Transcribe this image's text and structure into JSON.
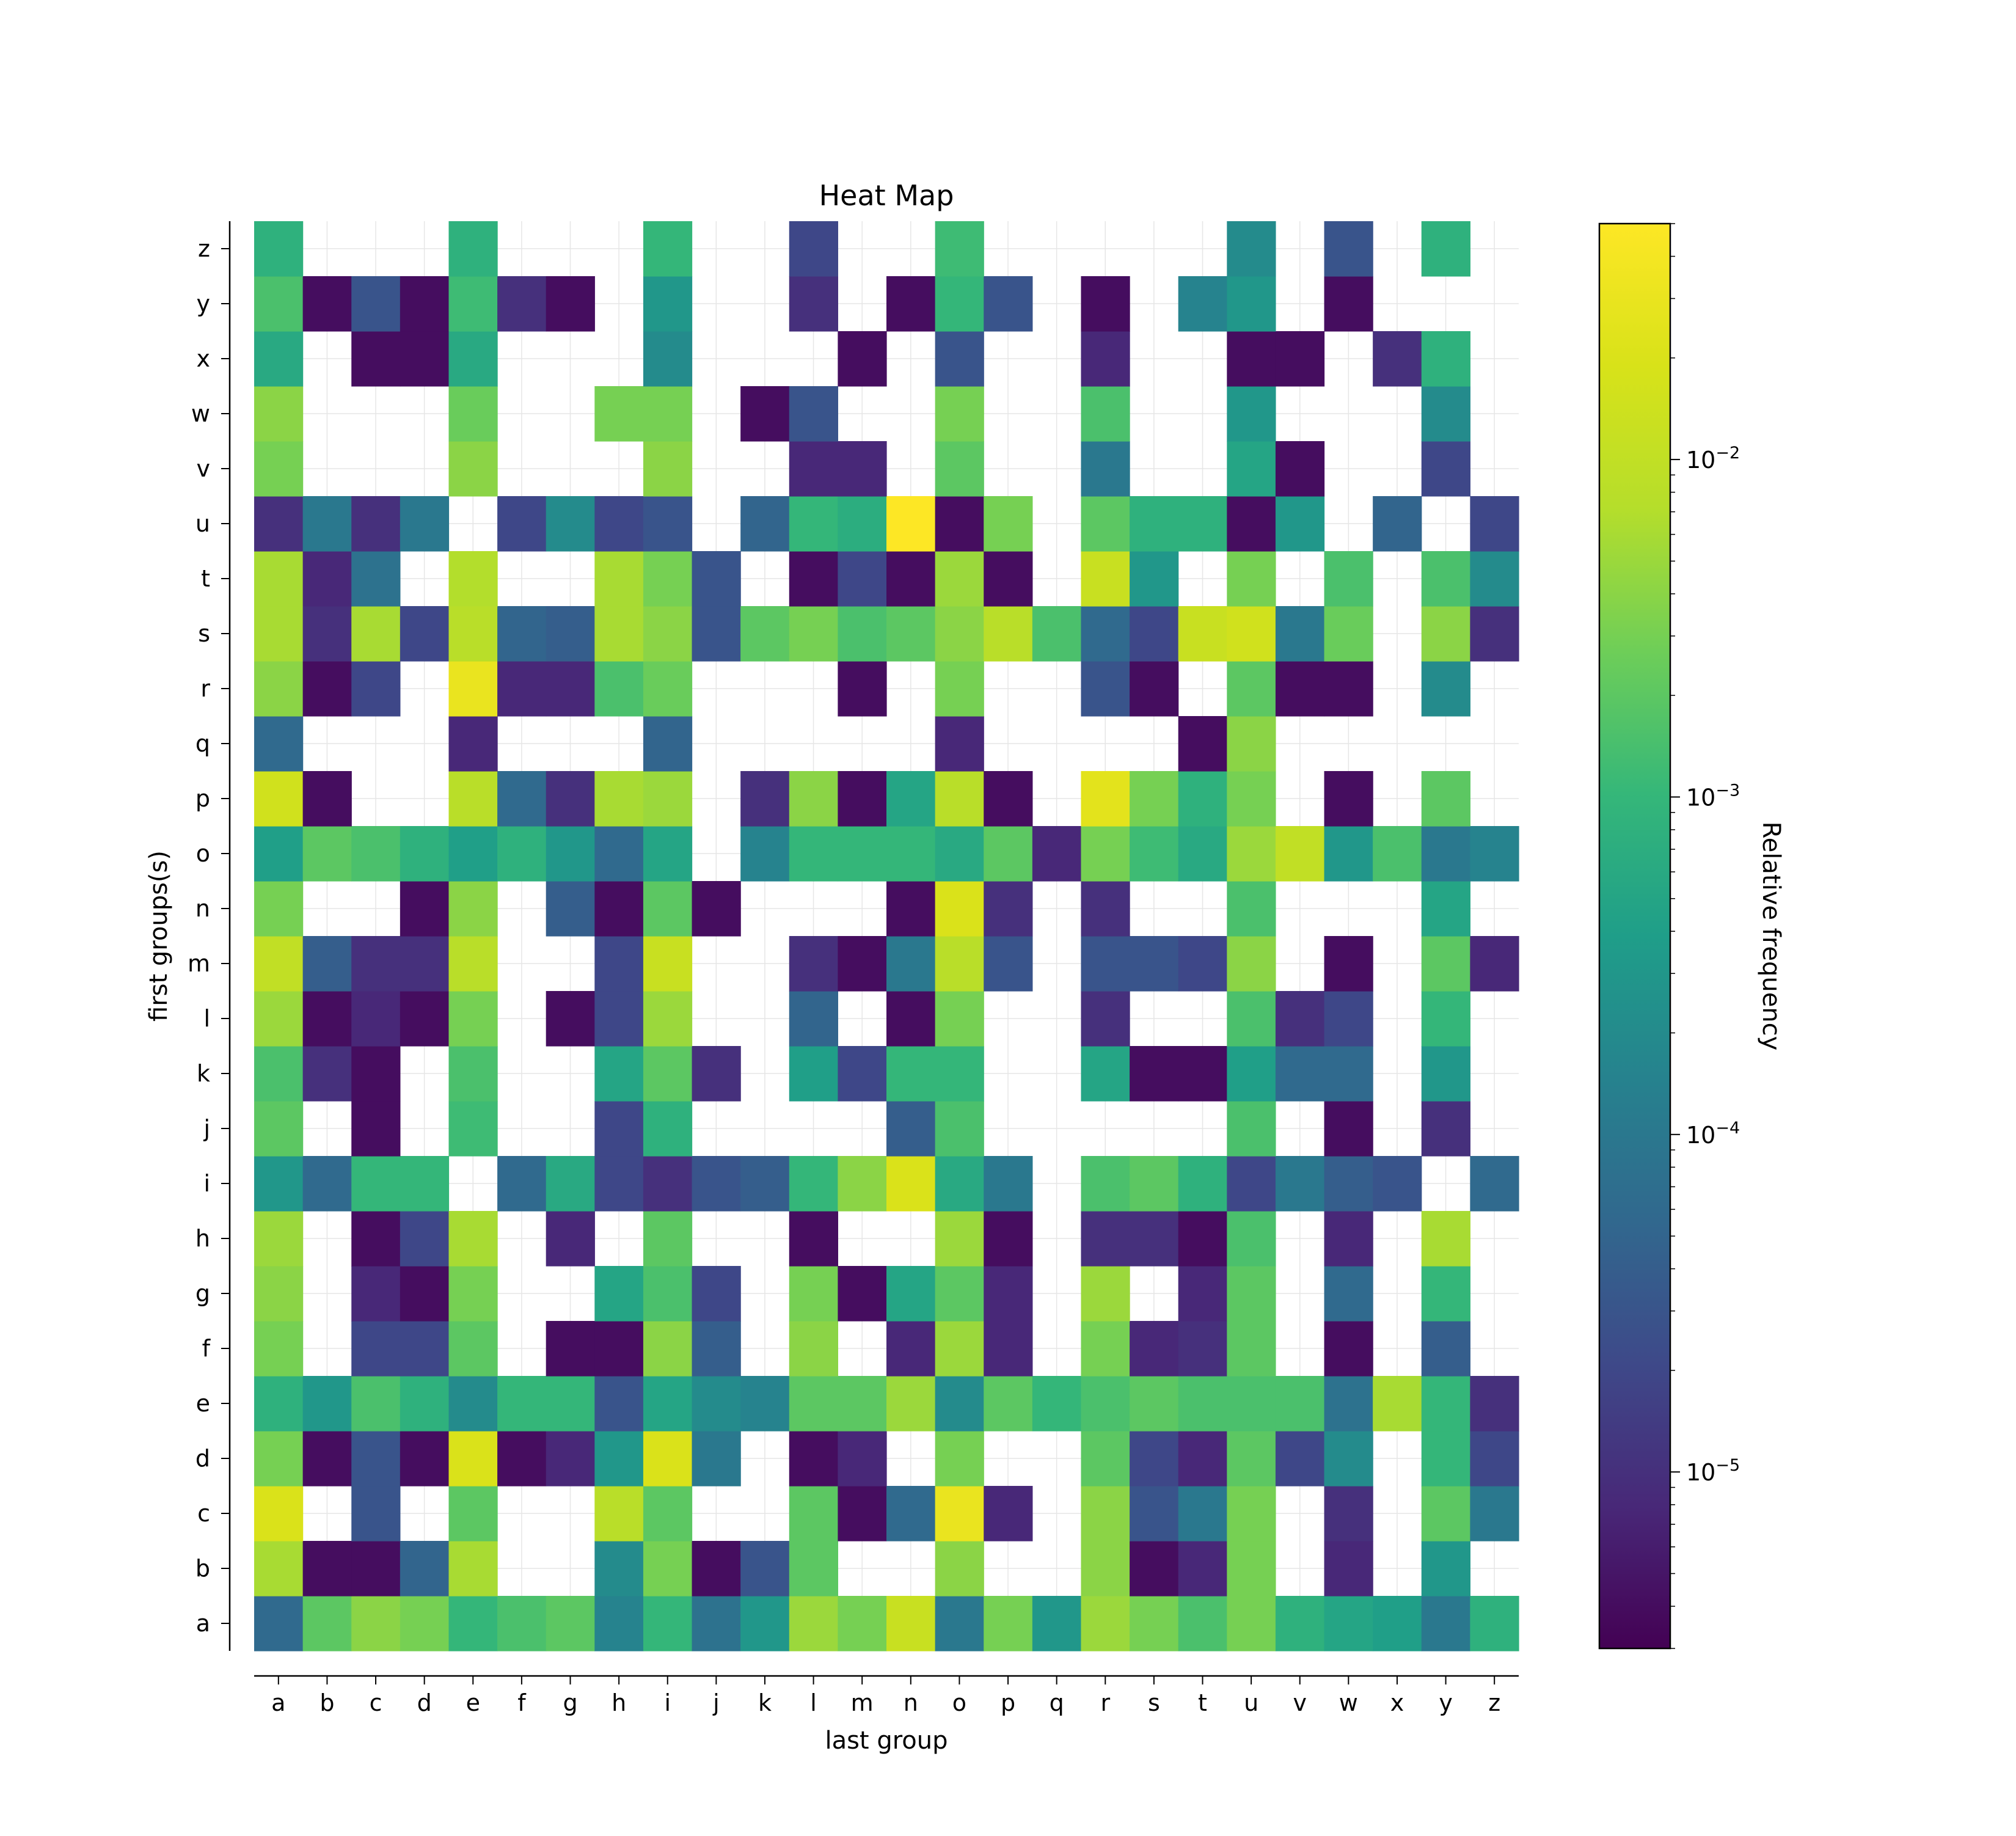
{
  "chart_data": {
    "type": "heatmap",
    "title": "Heat Map",
    "xlabel": "last group",
    "ylabel": "first groups(s)",
    "colorbar_label": "Relative frequency",
    "colorbar_scale": "log",
    "colorbar_range": [
      3e-06,
      0.05
    ],
    "colorbar_ticks": [
      {
        "value": 1e-05,
        "mantissa": "10",
        "exponent": "−5"
      },
      {
        "value": 0.0001,
        "mantissa": "10",
        "exponent": "−4"
      },
      {
        "value": 0.001,
        "mantissa": "10",
        "exponent": "−3"
      },
      {
        "value": 0.01,
        "mantissa": "10",
        "exponent": "−2"
      }
    ],
    "colormap": "viridis",
    "grid": true,
    "x_categories": [
      "a",
      "b",
      "c",
      "d",
      "e",
      "f",
      "g",
      "h",
      "i",
      "j",
      "k",
      "l",
      "m",
      "n",
      "o",
      "p",
      "q",
      "r",
      "s",
      "t",
      "u",
      "v",
      "w",
      "x",
      "y",
      "z"
    ],
    "y_categories": [
      "a",
      "b",
      "c",
      "d",
      "e",
      "f",
      "g",
      "h",
      "i",
      "j",
      "k",
      "l",
      "m",
      "n",
      "o",
      "p",
      "q",
      "r",
      "s",
      "t",
      "u",
      "v",
      "w",
      "x",
      "y",
      "z"
    ],
    "values": [
      [
        6e-05,
        0.002,
        0.004,
        0.003,
        0.001,
        0.0015,
        0.002,
        0.00015,
        0.001,
        8e-05,
        0.0003,
        0.005,
        0.003,
        0.012,
        0.0001,
        0.003,
        0.0003,
        0.005,
        0.003,
        0.0015,
        0.003,
        0.0008,
        0.0005,
        0.0004,
        0.0001,
        0.0008
      ],
      [
        0.006,
        4e-06,
        4e-06,
        5e-05,
        0.006,
        null,
        null,
        0.0002,
        0.003,
        4e-06,
        3e-05,
        0.002,
        null,
        null,
        0.004,
        null,
        null,
        0.004,
        4e-06,
        8e-06,
        0.003,
        null,
        8e-06,
        null,
        0.0003,
        null
      ],
      [
        0.02,
        null,
        3e-05,
        null,
        0.002,
        null,
        null,
        0.008,
        0.002,
        null,
        null,
        0.002,
        4e-06,
        6e-05,
        0.03,
        8e-06,
        null,
        0.004,
        3e-05,
        0.0001,
        0.003,
        null,
        1e-05,
        null,
        0.002,
        0.0001
      ],
      [
        0.003,
        4e-06,
        3e-05,
        4e-06,
        0.02,
        4e-06,
        8e-06,
        0.0003,
        0.02,
        0.0001,
        null,
        4e-06,
        8e-06,
        null,
        0.003,
        null,
        null,
        0.002,
        2e-05,
        8e-06,
        0.002,
        2e-05,
        0.0002,
        null,
        0.001,
        2e-05
      ],
      [
        0.0008,
        0.0003,
        0.0015,
        0.0008,
        0.0002,
        0.001,
        0.001,
        3e-05,
        0.0005,
        0.0002,
        0.00015,
        0.002,
        0.002,
        0.005,
        0.0002,
        0.002,
        0.001,
        0.0015,
        0.002,
        0.0015,
        0.0015,
        0.0015,
        8e-05,
        0.006,
        0.001,
        1e-05
      ],
      [
        0.003,
        null,
        2e-05,
        2e-05,
        0.002,
        null,
        4e-06,
        4e-06,
        0.004,
        4e-05,
        null,
        0.004,
        null,
        8e-06,
        0.005,
        8e-06,
        null,
        0.003,
        8e-06,
        1e-05,
        0.002,
        null,
        4e-06,
        null,
        4e-05,
        null
      ],
      [
        0.004,
        null,
        8e-06,
        4e-06,
        0.003,
        null,
        null,
        0.0005,
        0.0015,
        2e-05,
        null,
        0.003,
        4e-06,
        0.0005,
        0.002,
        8e-06,
        null,
        0.005,
        null,
        8e-06,
        0.002,
        null,
        6e-05,
        null,
        0.001,
        null
      ],
      [
        0.005,
        null,
        4e-06,
        2e-05,
        0.006,
        null,
        8e-06,
        null,
        0.002,
        null,
        null,
        4e-06,
        null,
        null,
        0.005,
        4e-06,
        null,
        1e-05,
        1e-05,
        4e-06,
        0.0015,
        null,
        8e-06,
        null,
        0.006,
        null
      ],
      [
        0.0003,
        6e-05,
        0.001,
        0.001,
        null,
        6e-05,
        0.0006,
        2e-05,
        1e-05,
        3e-05,
        4e-05,
        0.001,
        0.004,
        0.02,
        0.0006,
        0.0001,
        null,
        0.0015,
        0.002,
        0.0008,
        2e-05,
        0.0001,
        4e-05,
        3e-05,
        null,
        6e-05
      ],
      [
        0.002,
        null,
        4e-06,
        null,
        0.0012,
        null,
        null,
        2e-05,
        0.0008,
        null,
        null,
        null,
        null,
        4e-05,
        0.0015,
        null,
        null,
        null,
        null,
        null,
        0.0015,
        null,
        4e-06,
        null,
        1e-05,
        null
      ],
      [
        0.0015,
        1e-05,
        4e-06,
        null,
        0.0015,
        null,
        null,
        0.0005,
        0.002,
        1e-05,
        null,
        0.0004,
        2e-05,
        0.001,
        0.001,
        null,
        null,
        0.0005,
        4e-06,
        4e-06,
        0.0004,
        6e-05,
        6e-05,
        null,
        0.0003,
        null
      ],
      [
        0.005,
        4e-06,
        8e-06,
        4e-06,
        0.003,
        null,
        4e-06,
        2e-05,
        0.005,
        null,
        null,
        5e-05,
        null,
        4e-06,
        0.003,
        null,
        null,
        1e-05,
        null,
        null,
        0.0015,
        1e-05,
        2e-05,
        null,
        0.001,
        null
      ],
      [
        0.01,
        4e-05,
        1e-05,
        1e-05,
        0.008,
        null,
        null,
        2e-05,
        0.012,
        null,
        null,
        1e-05,
        4e-06,
        0.0001,
        0.008,
        3e-05,
        null,
        3e-05,
        3e-05,
        2e-05,
        0.004,
        null,
        4e-06,
        null,
        0.002,
        8e-06
      ],
      [
        0.003,
        null,
        null,
        4e-06,
        0.004,
        null,
        4e-05,
        4e-06,
        0.002,
        4e-06,
        null,
        null,
        null,
        4e-06,
        0.02,
        1e-05,
        null,
        1e-05,
        null,
        null,
        0.0015,
        null,
        null,
        null,
        0.0005,
        null
      ],
      [
        0.0004,
        0.002,
        0.0015,
        0.0008,
        0.0004,
        0.0008,
        0.0003,
        6e-05,
        0.0005,
        null,
        0.00015,
        0.001,
        0.001,
        0.001,
        0.0006,
        0.002,
        8e-06,
        0.003,
        0.0012,
        0.0006,
        0.005,
        0.01,
        0.0003,
        0.0015,
        0.0001,
        0.00015
      ],
      [
        0.015,
        4e-06,
        null,
        null,
        0.008,
        6e-05,
        1e-05,
        0.006,
        0.005,
        null,
        1e-05,
        0.004,
        4e-06,
        0.0005,
        0.008,
        4e-06,
        null,
        0.025,
        0.003,
        0.0008,
        0.003,
        null,
        4e-06,
        null,
        0.002,
        null
      ],
      [
        6e-05,
        null,
        null,
        null,
        8e-06,
        null,
        null,
        null,
        5e-05,
        null,
        null,
        null,
        null,
        null,
        8e-06,
        null,
        null,
        null,
        null,
        4e-06,
        0.004,
        null,
        null,
        null,
        null,
        null
      ],
      [
        0.004,
        4e-06,
        2e-05,
        null,
        0.03,
        8e-06,
        8e-06,
        0.0015,
        0.0025,
        null,
        null,
        null,
        4e-06,
        null,
        0.003,
        null,
        null,
        3e-05,
        4e-06,
        null,
        0.002,
        4e-06,
        4e-06,
        null,
        0.0002,
        null
      ],
      [
        0.006,
        1e-05,
        0.006,
        2e-05,
        0.008,
        5e-05,
        4e-05,
        0.006,
        0.004,
        3e-05,
        0.002,
        0.003,
        0.0015,
        0.002,
        0.004,
        0.008,
        0.0015,
        6e-05,
        2e-05,
        0.012,
        0.015,
        0.0001,
        0.0025,
        null,
        0.004,
        1e-05
      ],
      [
        0.006,
        8e-06,
        8e-05,
        null,
        0.007,
        null,
        null,
        0.006,
        0.003,
        3e-05,
        null,
        4e-06,
        2e-05,
        4e-06,
        0.005,
        4e-06,
        null,
        0.012,
        0.0003,
        null,
        0.003,
        null,
        0.0015,
        null,
        0.0015,
        0.0002
      ],
      [
        1e-05,
        0.0001,
        1e-05,
        0.0001,
        null,
        2e-05,
        0.0002,
        2e-05,
        3e-05,
        null,
        5e-05,
        0.001,
        0.0007,
        0.05,
        4e-06,
        0.003,
        null,
        0.002,
        0.0008,
        0.0008,
        4e-06,
        0.0003,
        null,
        5e-05,
        null,
        2e-05
      ],
      [
        0.003,
        null,
        null,
        null,
        0.004,
        null,
        null,
        null,
        0.004,
        null,
        null,
        8e-06,
        8e-06,
        null,
        0.002,
        null,
        null,
        0.0001,
        null,
        null,
        0.0005,
        4e-06,
        null,
        null,
        2e-05,
        null
      ],
      [
        0.004,
        null,
        null,
        null,
        0.0025,
        null,
        null,
        0.003,
        0.003,
        null,
        4e-06,
        3e-05,
        null,
        null,
        0.003,
        null,
        null,
        0.0015,
        null,
        null,
        0.0003,
        null,
        null,
        null,
        0.0002,
        null
      ],
      [
        0.0006,
        null,
        4e-06,
        4e-06,
        0.0006,
        null,
        null,
        null,
        0.0002,
        null,
        null,
        null,
        4e-06,
        null,
        3e-05,
        null,
        null,
        8e-06,
        null,
        null,
        4e-06,
        4e-06,
        null,
        1e-05,
        0.0008,
        null
      ],
      [
        0.0015,
        4e-06,
        3e-05,
        4e-06,
        0.0012,
        1e-05,
        4e-06,
        null,
        0.0003,
        null,
        null,
        1e-05,
        null,
        4e-06,
        0.001,
        3e-05,
        null,
        4e-06,
        null,
        0.00015,
        0.0003,
        null,
        4e-06,
        null,
        null,
        null
      ],
      [
        0.0008,
        null,
        null,
        null,
        0.0008,
        null,
        null,
        null,
        0.001,
        null,
        null,
        2e-05,
        null,
        null,
        0.0012,
        null,
        null,
        null,
        null,
        null,
        0.0002,
        null,
        3e-05,
        null,
        0.0008,
        null
      ]
    ]
  }
}
